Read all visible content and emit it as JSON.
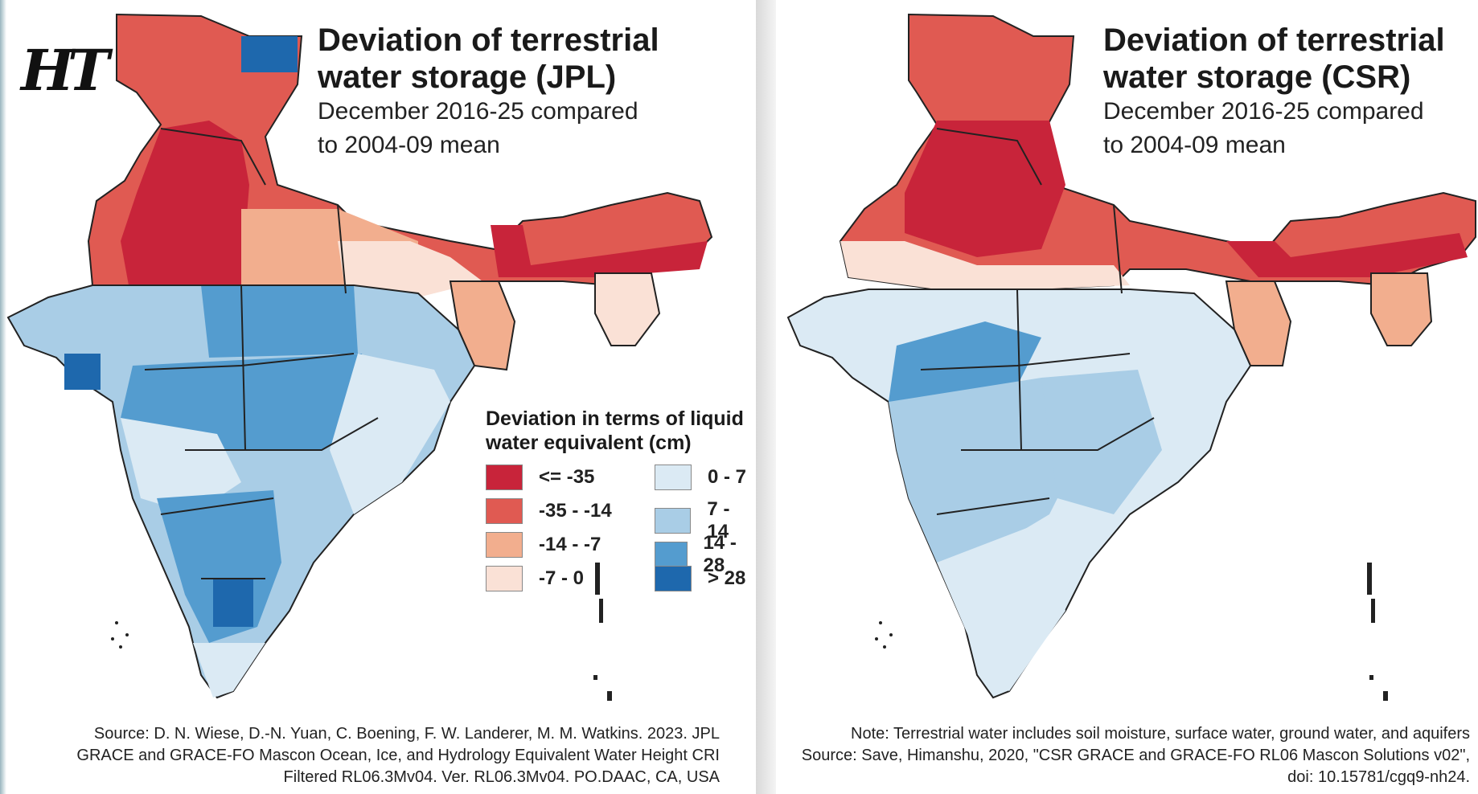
{
  "logo": "HT",
  "left_panel": {
    "title": "Deviation of terrestrial water storage (JPL)",
    "subtitle": "December 2016-25 compared to 2004-09 mean",
    "source": "Source: D. N. Wiese, D.-N. Yuan, C. Boening, F. W. Landerer, M. M. Watkins. 2023. JPL GRACE and GRACE-FO Mascon Ocean, Ice, and Hydrology Equivalent Water Height CRI Filtered RL06.3Mv04. Ver. RL06.3Mv04. PO.DAAC, CA, USA"
  },
  "right_panel": {
    "title": "Deviation of terrestrial water storage (CSR)",
    "subtitle": "December 2016-25 compared to 2004-09 mean",
    "note": "Note: Terrestrial water includes soil moisture, surface water, ground water, and aquifers",
    "source": "Source: Save, Himanshu, 2020, \"CSR GRACE and GRACE-FO RL06 Mascon Solutions v02\", doi: 10.15781/cgq9-nh24."
  },
  "legend": {
    "title": "Deviation in terms of liquid water equivalent (cm)",
    "items": [
      {
        "label": "<= -35",
        "color": "#c8243a"
      },
      {
        "label": "-35 - -14",
        "color": "#e05a52"
      },
      {
        "label": "-14 - -7",
        "color": "#f2ae8e"
      },
      {
        "label": "-7 - 0",
        "color": "#fae1d6"
      },
      {
        "label": "0 - 7",
        "color": "#dbeaf4"
      },
      {
        "label": "7 - 14",
        "color": "#a9cde6"
      },
      {
        "label": "14 - 28",
        "color": "#549ccf"
      },
      {
        "label": "> 28",
        "color": "#1e68ad"
      }
    ]
  }
}
